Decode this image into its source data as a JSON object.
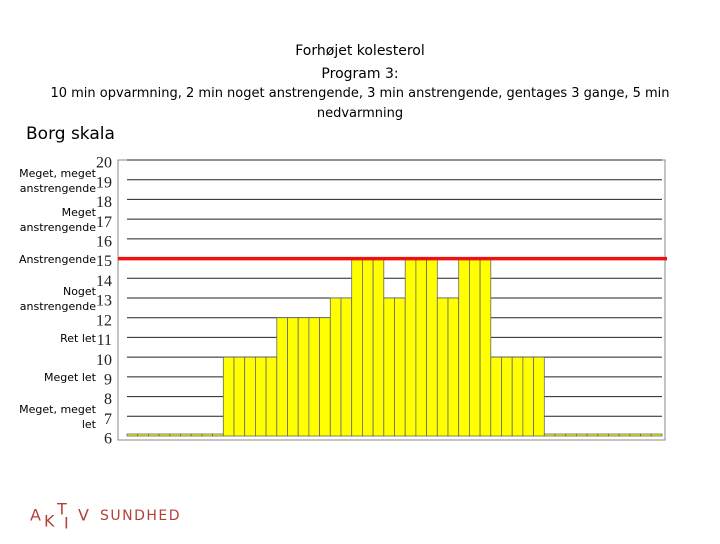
{
  "chart_data": {
    "type": "bar",
    "title": "Forhøjet kolesterol",
    "subtitle": "Program 3:",
    "description": "10 min opvarmning, 2 min noget anstrengende, 3 min anstrengende, gentages 3 gange, 5 min nedvarmning",
    "y_label": "Borg skala",
    "values": [
      6,
      6,
      6,
      6,
      6,
      6,
      6,
      6,
      6,
      10,
      10,
      10,
      10,
      10,
      12,
      12,
      12,
      12,
      12,
      13,
      13,
      15,
      15,
      15,
      13,
      13,
      15,
      15,
      15,
      13,
      13,
      15,
      15,
      15,
      10,
      10,
      10,
      10,
      10,
      6,
      6,
      6,
      6,
      6,
      6,
      6,
      6,
      6,
      6,
      6
    ],
    "color": "#ffff00",
    "ylim": [
      6,
      20
    ],
    "yticks": [
      6,
      7,
      8,
      9,
      10,
      11,
      12,
      13,
      14,
      15,
      16,
      17,
      18,
      19,
      20
    ],
    "grid": true,
    "reference_line": {
      "value": 15,
      "color": "#ee1111"
    },
    "scale_labels": [
      {
        "value": 19,
        "label": "Meget, meget anstrengende"
      },
      {
        "value": 17,
        "label": "Meget anstrengende"
      },
      {
        "value": 15,
        "label": "Anstrengende"
      },
      {
        "value": 13,
        "label": "Noget anstrengende"
      },
      {
        "value": 11,
        "label": "Ret let"
      },
      {
        "value": 9,
        "label": "Meget let"
      },
      {
        "value": 7,
        "label": "Meget, meget let"
      }
    ]
  },
  "logo": {
    "letters": [
      "A",
      "K",
      "T",
      "I",
      "V"
    ],
    "word": "SUNDHED"
  }
}
